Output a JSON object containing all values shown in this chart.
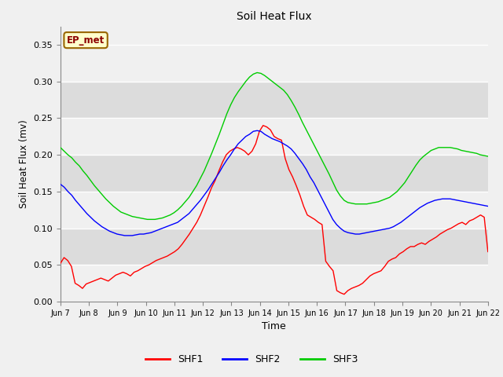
{
  "title": "Soil Heat Flux",
  "xlabel": "Time",
  "ylabel": "Soil Heat Flux (mv)",
  "ylim": [
    0.0,
    0.375
  ],
  "yticks": [
    0.0,
    0.05,
    0.1,
    0.15,
    0.2,
    0.25,
    0.3,
    0.35
  ],
  "background_color": "#f0f0f0",
  "plot_bg_light": "#f5f5f5",
  "plot_bg_dark": "#e0e0e0",
  "grid_color": "#ffffff",
  "annotation_text": "EP_met",
  "annotation_bg": "#ffffcc",
  "annotation_border": "#996600",
  "legend_labels": [
    "SHF1",
    "SHF2",
    "SHF3"
  ],
  "line_colors": [
    "#ff0000",
    "#0000ff",
    "#00cc00"
  ],
  "band_colors": [
    "#f0f0f0",
    "#dcdcdc"
  ],
  "shf1": [
    0.052,
    0.06,
    0.056,
    0.048,
    0.025,
    0.022,
    0.018,
    0.024,
    0.026,
    0.028,
    0.03,
    0.032,
    0.03,
    0.028,
    0.032,
    0.036,
    0.038,
    0.04,
    0.038,
    0.035,
    0.04,
    0.042,
    0.045,
    0.048,
    0.05,
    0.053,
    0.056,
    0.058,
    0.06,
    0.062,
    0.065,
    0.068,
    0.072,
    0.078,
    0.085,
    0.092,
    0.1,
    0.108,
    0.118,
    0.13,
    0.142,
    0.155,
    0.165,
    0.178,
    0.19,
    0.2,
    0.205,
    0.208,
    0.21,
    0.208,
    0.205,
    0.2,
    0.205,
    0.215,
    0.232,
    0.24,
    0.238,
    0.234,
    0.225,
    0.222,
    0.22,
    0.195,
    0.18,
    0.17,
    0.158,
    0.145,
    0.13,
    0.118,
    0.115,
    0.112,
    0.108,
    0.105,
    0.055,
    0.048,
    0.042,
    0.015,
    0.012,
    0.01,
    0.015,
    0.018,
    0.02,
    0.022,
    0.025,
    0.03,
    0.035,
    0.038,
    0.04,
    0.042,
    0.048,
    0.055,
    0.058,
    0.06,
    0.065,
    0.068,
    0.072,
    0.075,
    0.075,
    0.078,
    0.08,
    0.078,
    0.082,
    0.085,
    0.088,
    0.092,
    0.095,
    0.098,
    0.1,
    0.103,
    0.106,
    0.108,
    0.105,
    0.11,
    0.112,
    0.115,
    0.118,
    0.115,
    0.068
  ],
  "shf2": [
    0.16,
    0.156,
    0.15,
    0.145,
    0.138,
    0.132,
    0.126,
    0.12,
    0.115,
    0.11,
    0.106,
    0.102,
    0.099,
    0.096,
    0.094,
    0.092,
    0.091,
    0.09,
    0.09,
    0.09,
    0.091,
    0.092,
    0.092,
    0.093,
    0.094,
    0.096,
    0.098,
    0.1,
    0.102,
    0.104,
    0.106,
    0.108,
    0.112,
    0.116,
    0.12,
    0.126,
    0.132,
    0.138,
    0.145,
    0.152,
    0.16,
    0.168,
    0.176,
    0.185,
    0.193,
    0.2,
    0.208,
    0.215,
    0.22,
    0.225,
    0.228,
    0.232,
    0.233,
    0.232,
    0.228,
    0.225,
    0.222,
    0.22,
    0.218,
    0.215,
    0.212,
    0.208,
    0.202,
    0.195,
    0.188,
    0.18,
    0.17,
    0.162,
    0.152,
    0.142,
    0.132,
    0.122,
    0.112,
    0.105,
    0.1,
    0.096,
    0.094,
    0.093,
    0.092,
    0.092,
    0.093,
    0.094,
    0.095,
    0.096,
    0.097,
    0.098,
    0.099,
    0.1,
    0.102,
    0.105,
    0.108,
    0.112,
    0.116,
    0.12,
    0.124,
    0.128,
    0.131,
    0.134,
    0.136,
    0.138,
    0.139,
    0.14,
    0.14,
    0.14,
    0.139,
    0.138,
    0.137,
    0.136,
    0.135,
    0.134,
    0.133,
    0.132,
    0.131,
    0.13
  ],
  "shf3": [
    0.21,
    0.205,
    0.2,
    0.196,
    0.19,
    0.185,
    0.178,
    0.172,
    0.165,
    0.158,
    0.152,
    0.146,
    0.14,
    0.135,
    0.13,
    0.126,
    0.122,
    0.12,
    0.118,
    0.116,
    0.115,
    0.114,
    0.113,
    0.112,
    0.112,
    0.112,
    0.113,
    0.114,
    0.116,
    0.118,
    0.121,
    0.125,
    0.13,
    0.136,
    0.142,
    0.15,
    0.158,
    0.168,
    0.178,
    0.19,
    0.202,
    0.215,
    0.228,
    0.242,
    0.256,
    0.268,
    0.278,
    0.286,
    0.293,
    0.3,
    0.306,
    0.31,
    0.312,
    0.311,
    0.308,
    0.304,
    0.3,
    0.296,
    0.292,
    0.288,
    0.282,
    0.274,
    0.265,
    0.255,
    0.244,
    0.234,
    0.224,
    0.214,
    0.204,
    0.194,
    0.184,
    0.174,
    0.163,
    0.152,
    0.144,
    0.138,
    0.135,
    0.134,
    0.133,
    0.133,
    0.133,
    0.133,
    0.134,
    0.135,
    0.136,
    0.138,
    0.14,
    0.142,
    0.146,
    0.15,
    0.156,
    0.162,
    0.17,
    0.178,
    0.186,
    0.193,
    0.198,
    0.202,
    0.206,
    0.208,
    0.21,
    0.21,
    0.21,
    0.21,
    0.209,
    0.208,
    0.206,
    0.205,
    0.204,
    0.203,
    0.202,
    0.2,
    0.199,
    0.198
  ]
}
